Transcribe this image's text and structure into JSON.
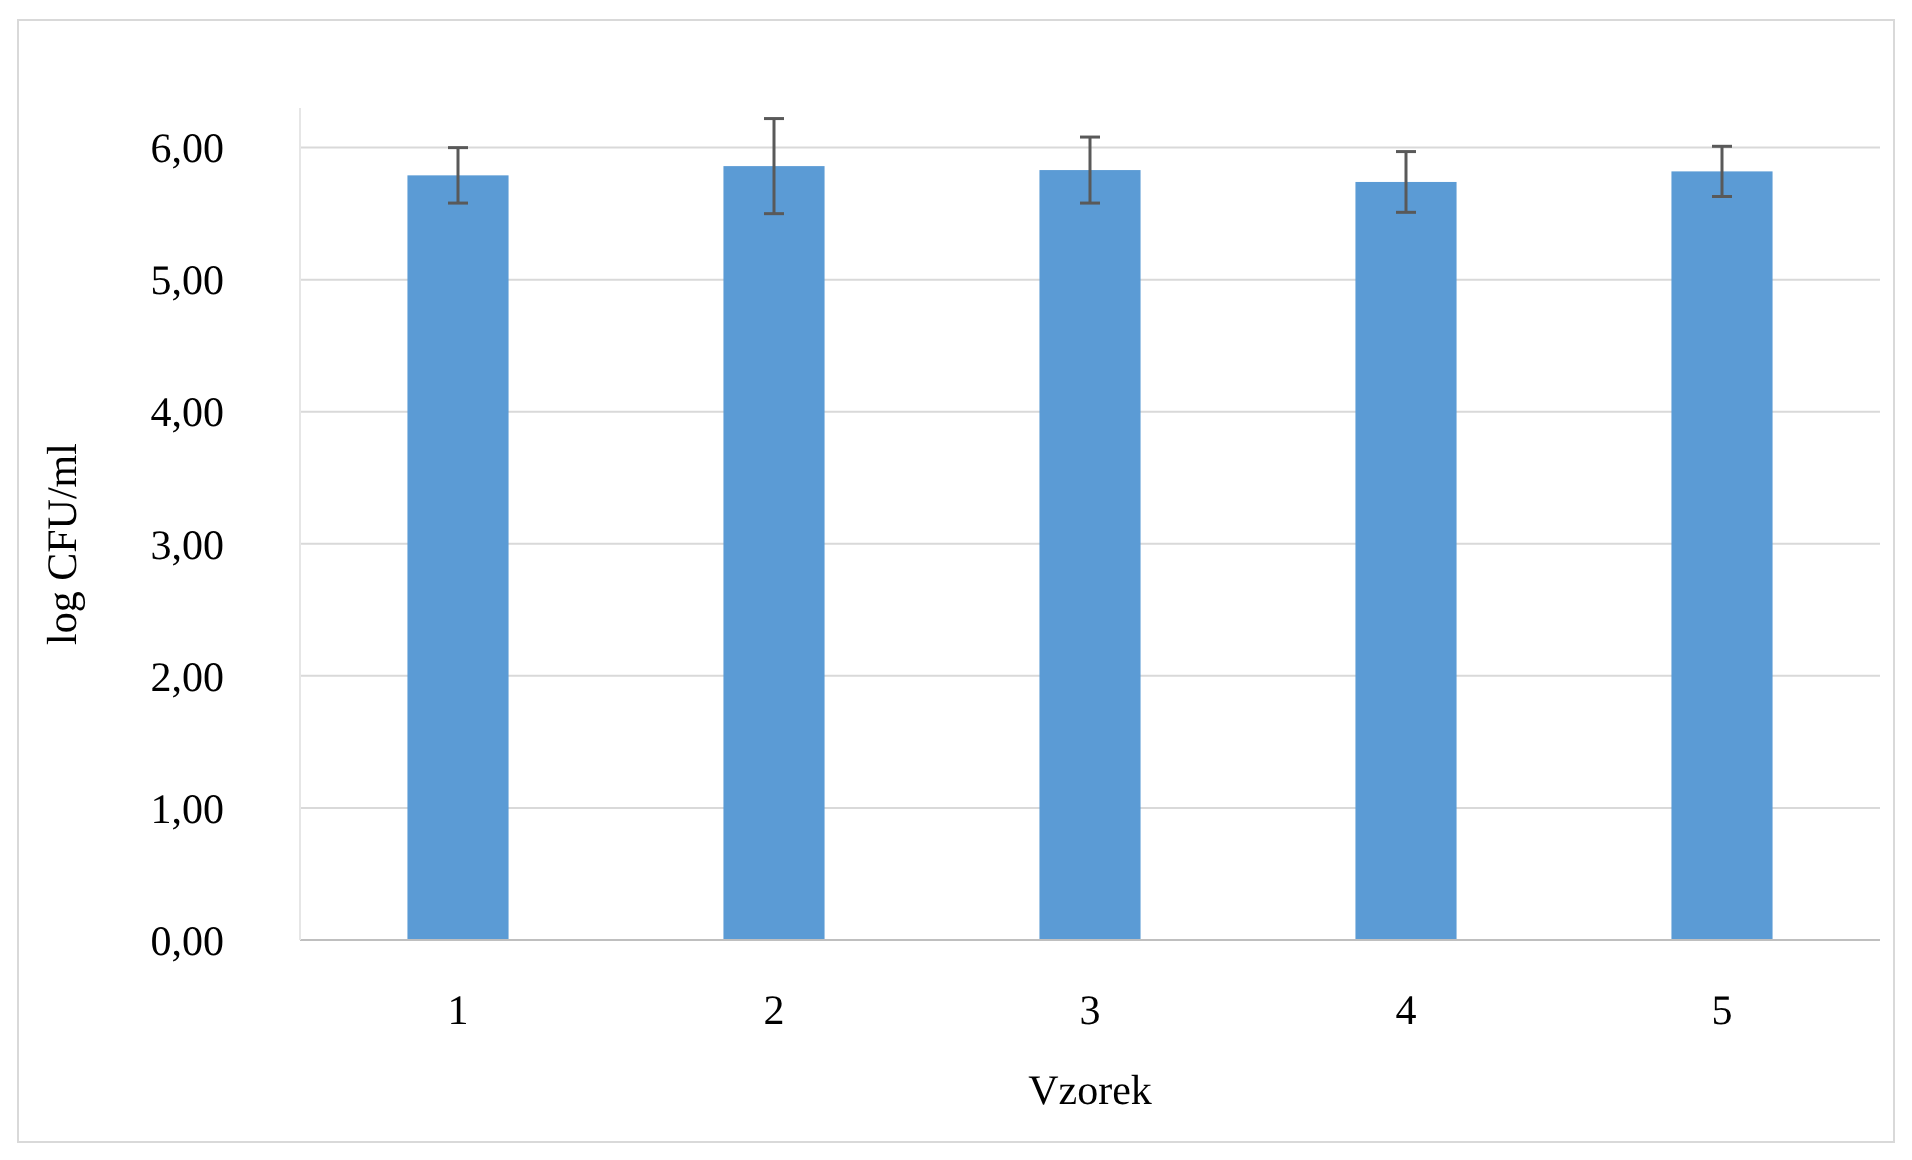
{
  "chart_data": {
    "type": "bar",
    "xlabel": "Vzorek",
    "ylabel": "log CFU/ml",
    "categories": [
      "1",
      "2",
      "3",
      "4",
      "5"
    ],
    "values": [
      5.79,
      5.86,
      5.83,
      5.74,
      5.82
    ],
    "errors": [
      0.21,
      0.36,
      0.25,
      0.23,
      0.19
    ],
    "color": "#5b9bd5",
    "ylim": [
      0,
      6.3
    ],
    "yticks": [
      {
        "value": 0,
        "label": "0,00"
      },
      {
        "value": 1,
        "label": "1,00"
      },
      {
        "value": 2,
        "label": "2,00"
      },
      {
        "value": 3,
        "label": "3,00"
      },
      {
        "value": 4,
        "label": "4,00"
      },
      {
        "value": 5,
        "label": "5,00"
      },
      {
        "value": 6,
        "label": "6,00"
      }
    ],
    "grid": "y"
  }
}
